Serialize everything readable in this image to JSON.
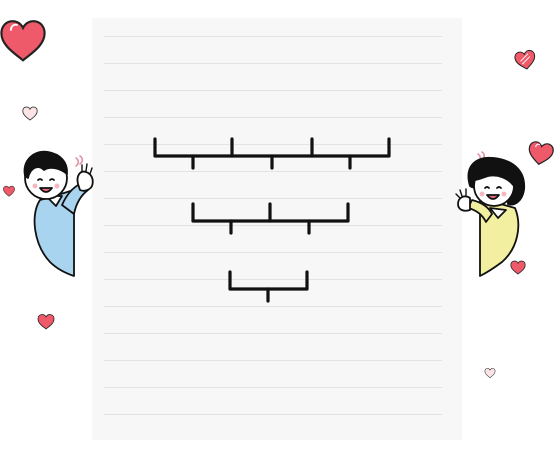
{
  "scene": {
    "description_free": true,
    "colors": {
      "paper": "#f7f7f7",
      "rule_line": "#e3e3e3",
      "bracket": "#111111",
      "heart_fill": "#ef5a6b",
      "heart_outline": "#222222",
      "boy_shirt": "#a9d4ef",
      "girl_shirt": "#f2f0a0",
      "skin": "#ffffff",
      "hair": "#111111"
    },
    "icons": {
      "hearts": [
        "heart-icon",
        "heart-icon",
        "heart-icon",
        "heart-icon",
        "heart-icon",
        "heart-icon",
        "heart-icon",
        "heart-icon"
      ],
      "characters": [
        "boy-waving-icon",
        "girl-waving-icon"
      ]
    },
    "bracket_rows": [
      {
        "name": "row-1",
        "segments": 3
      },
      {
        "name": "row-2",
        "segments": 2
      },
      {
        "name": "row-3",
        "segments": 1
      }
    ]
  }
}
